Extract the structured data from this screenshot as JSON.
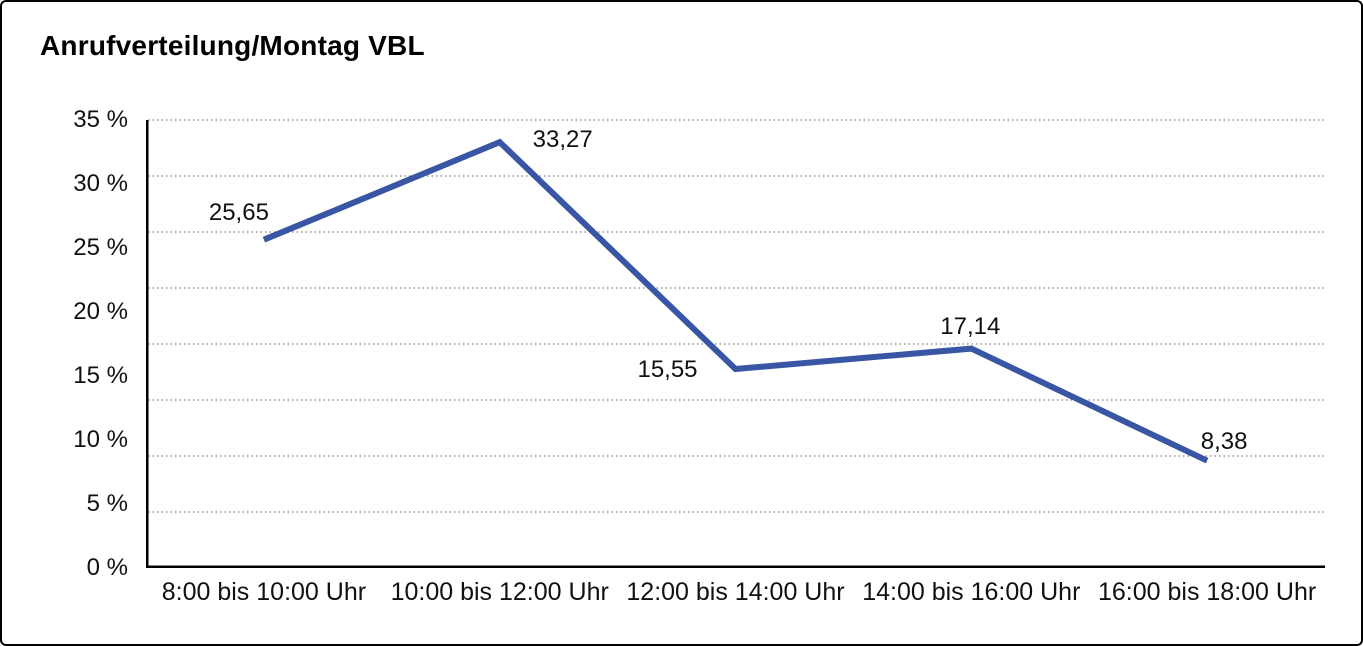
{
  "window": {
    "title": "Anrufverteilung/Montag VBL"
  },
  "colors": {
    "line": "#3856A3",
    "grid": "#7f7f7f",
    "axis": "#000000",
    "text": "#111111",
    "background": "#ffffff",
    "border": "#000000"
  },
  "chart_data": {
    "type": "line",
    "title": "Anrufverteilung/Montag VBL",
    "categories": [
      "8:00 bis 10:00 Uhr",
      "10:00 bis 12:00 Uhr",
      "12:00 bis 14:00 Uhr",
      "14:00 bis 16:00 Uhr",
      "16:00 bis 18:00 Uhr"
    ],
    "values": [
      25.65,
      33.27,
      15.55,
      17.14,
      8.38
    ],
    "data_labels": [
      "25,65",
      "33,27",
      "15,55",
      "17,14",
      "8,38"
    ],
    "y_ticks": [
      "35 %",
      "30 %",
      "25 %",
      "20 %",
      "15 %",
      "10 %",
      "5 %",
      "0 %"
    ],
    "ylim": [
      0,
      35
    ],
    "xlabel": "",
    "ylabel": "",
    "unit": "%",
    "legend": "none",
    "grid": "horizontal-dotted-8-intervals",
    "line_color": "#3856A3"
  }
}
